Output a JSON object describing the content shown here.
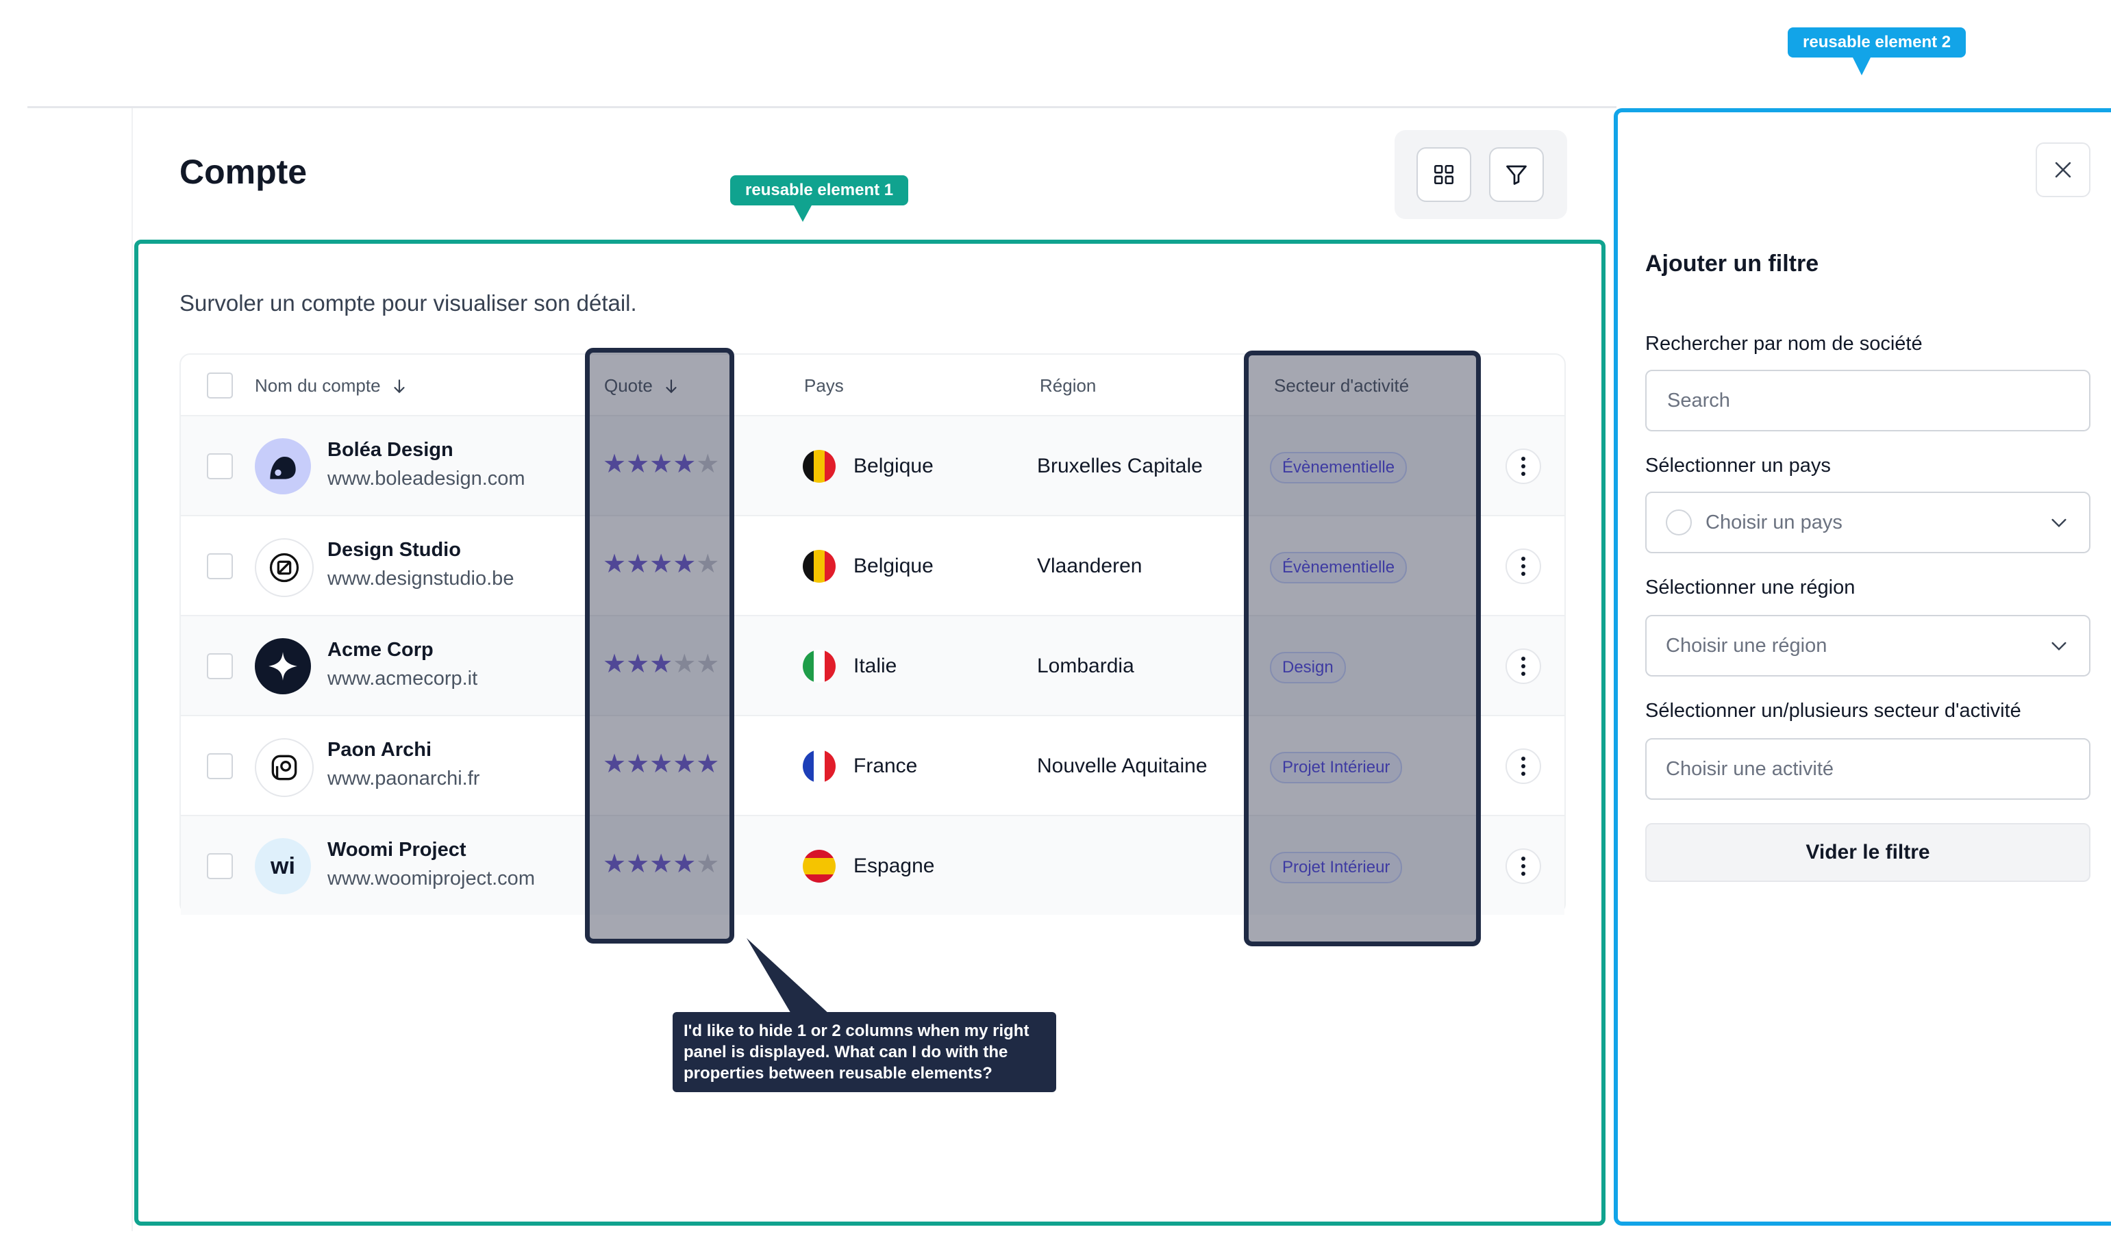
{
  "page": {
    "title": "Compte",
    "subtitle": "Survoler un compte pour visualiser son détail."
  },
  "toolbar": {
    "grid_icon": "grid-icon",
    "filter_icon": "filter-icon"
  },
  "annotations": {
    "tag1": "reusable element 1",
    "tag2": "reusable element 2",
    "callout": "I'd like to hide 1 or 2 columns when my right panel is displayed. What can I do with the properties between reusable elements?"
  },
  "table": {
    "headers": {
      "name": "Nom du compte",
      "rating": "Quote",
      "country": "Pays",
      "region": "Région",
      "sector": "Secteur d'activité"
    },
    "rows": [
      {
        "name": "Boléa Design",
        "url": "www.boleadesign.com",
        "rating": 4,
        "country": "Belgique",
        "flag": "be",
        "region": "Bruxelles Capitale",
        "sector": "Évènementielle",
        "logo": "bolea-logo"
      },
      {
        "name": "Design Studio",
        "url": "www.designstudio.be",
        "rating": 4,
        "country": "Belgique",
        "flag": "be",
        "region": "Vlaanderen",
        "sector": "Évènementielle",
        "logo": "designstudio-logo"
      },
      {
        "name": "Acme Corp",
        "url": "www.acmecorp.it",
        "rating": 3,
        "country": "Italie",
        "flag": "it",
        "region": "Lombardia",
        "sector": "Design",
        "logo": "acme-logo"
      },
      {
        "name": "Paon Archi",
        "url": "www.paonarchi.fr",
        "rating": 5,
        "country": "France",
        "flag": "fr",
        "region": "Nouvelle Aquitaine",
        "sector": "Projet Intérieur",
        "logo": "paon-logo"
      },
      {
        "name": "Woomi Project",
        "url": "www.woomiproject.com",
        "rating": 4,
        "country": "Espagne",
        "flag": "es",
        "region": "",
        "sector": "Projet Intérieur",
        "logo": "woomi-logo"
      }
    ]
  },
  "filter_panel": {
    "title": "Ajouter un filtre",
    "search_label": "Rechercher par nom de société",
    "search_placeholder": "Search",
    "country_label": "Sélectionner un pays",
    "country_placeholder": "Choisir un pays",
    "region_label": "Sélectionner une région",
    "region_placeholder": "Choisir une région",
    "sector_label": "Sélectionner un/plusieurs secteur d'activité",
    "sector_placeholder": "Choisir une activité",
    "clear_label": "Vider le filtre"
  },
  "colors": {
    "accent_green": "#10a38f",
    "accent_blue": "#12a4e8",
    "star": "#6d5bd0",
    "badge": "#4f46e5"
  }
}
